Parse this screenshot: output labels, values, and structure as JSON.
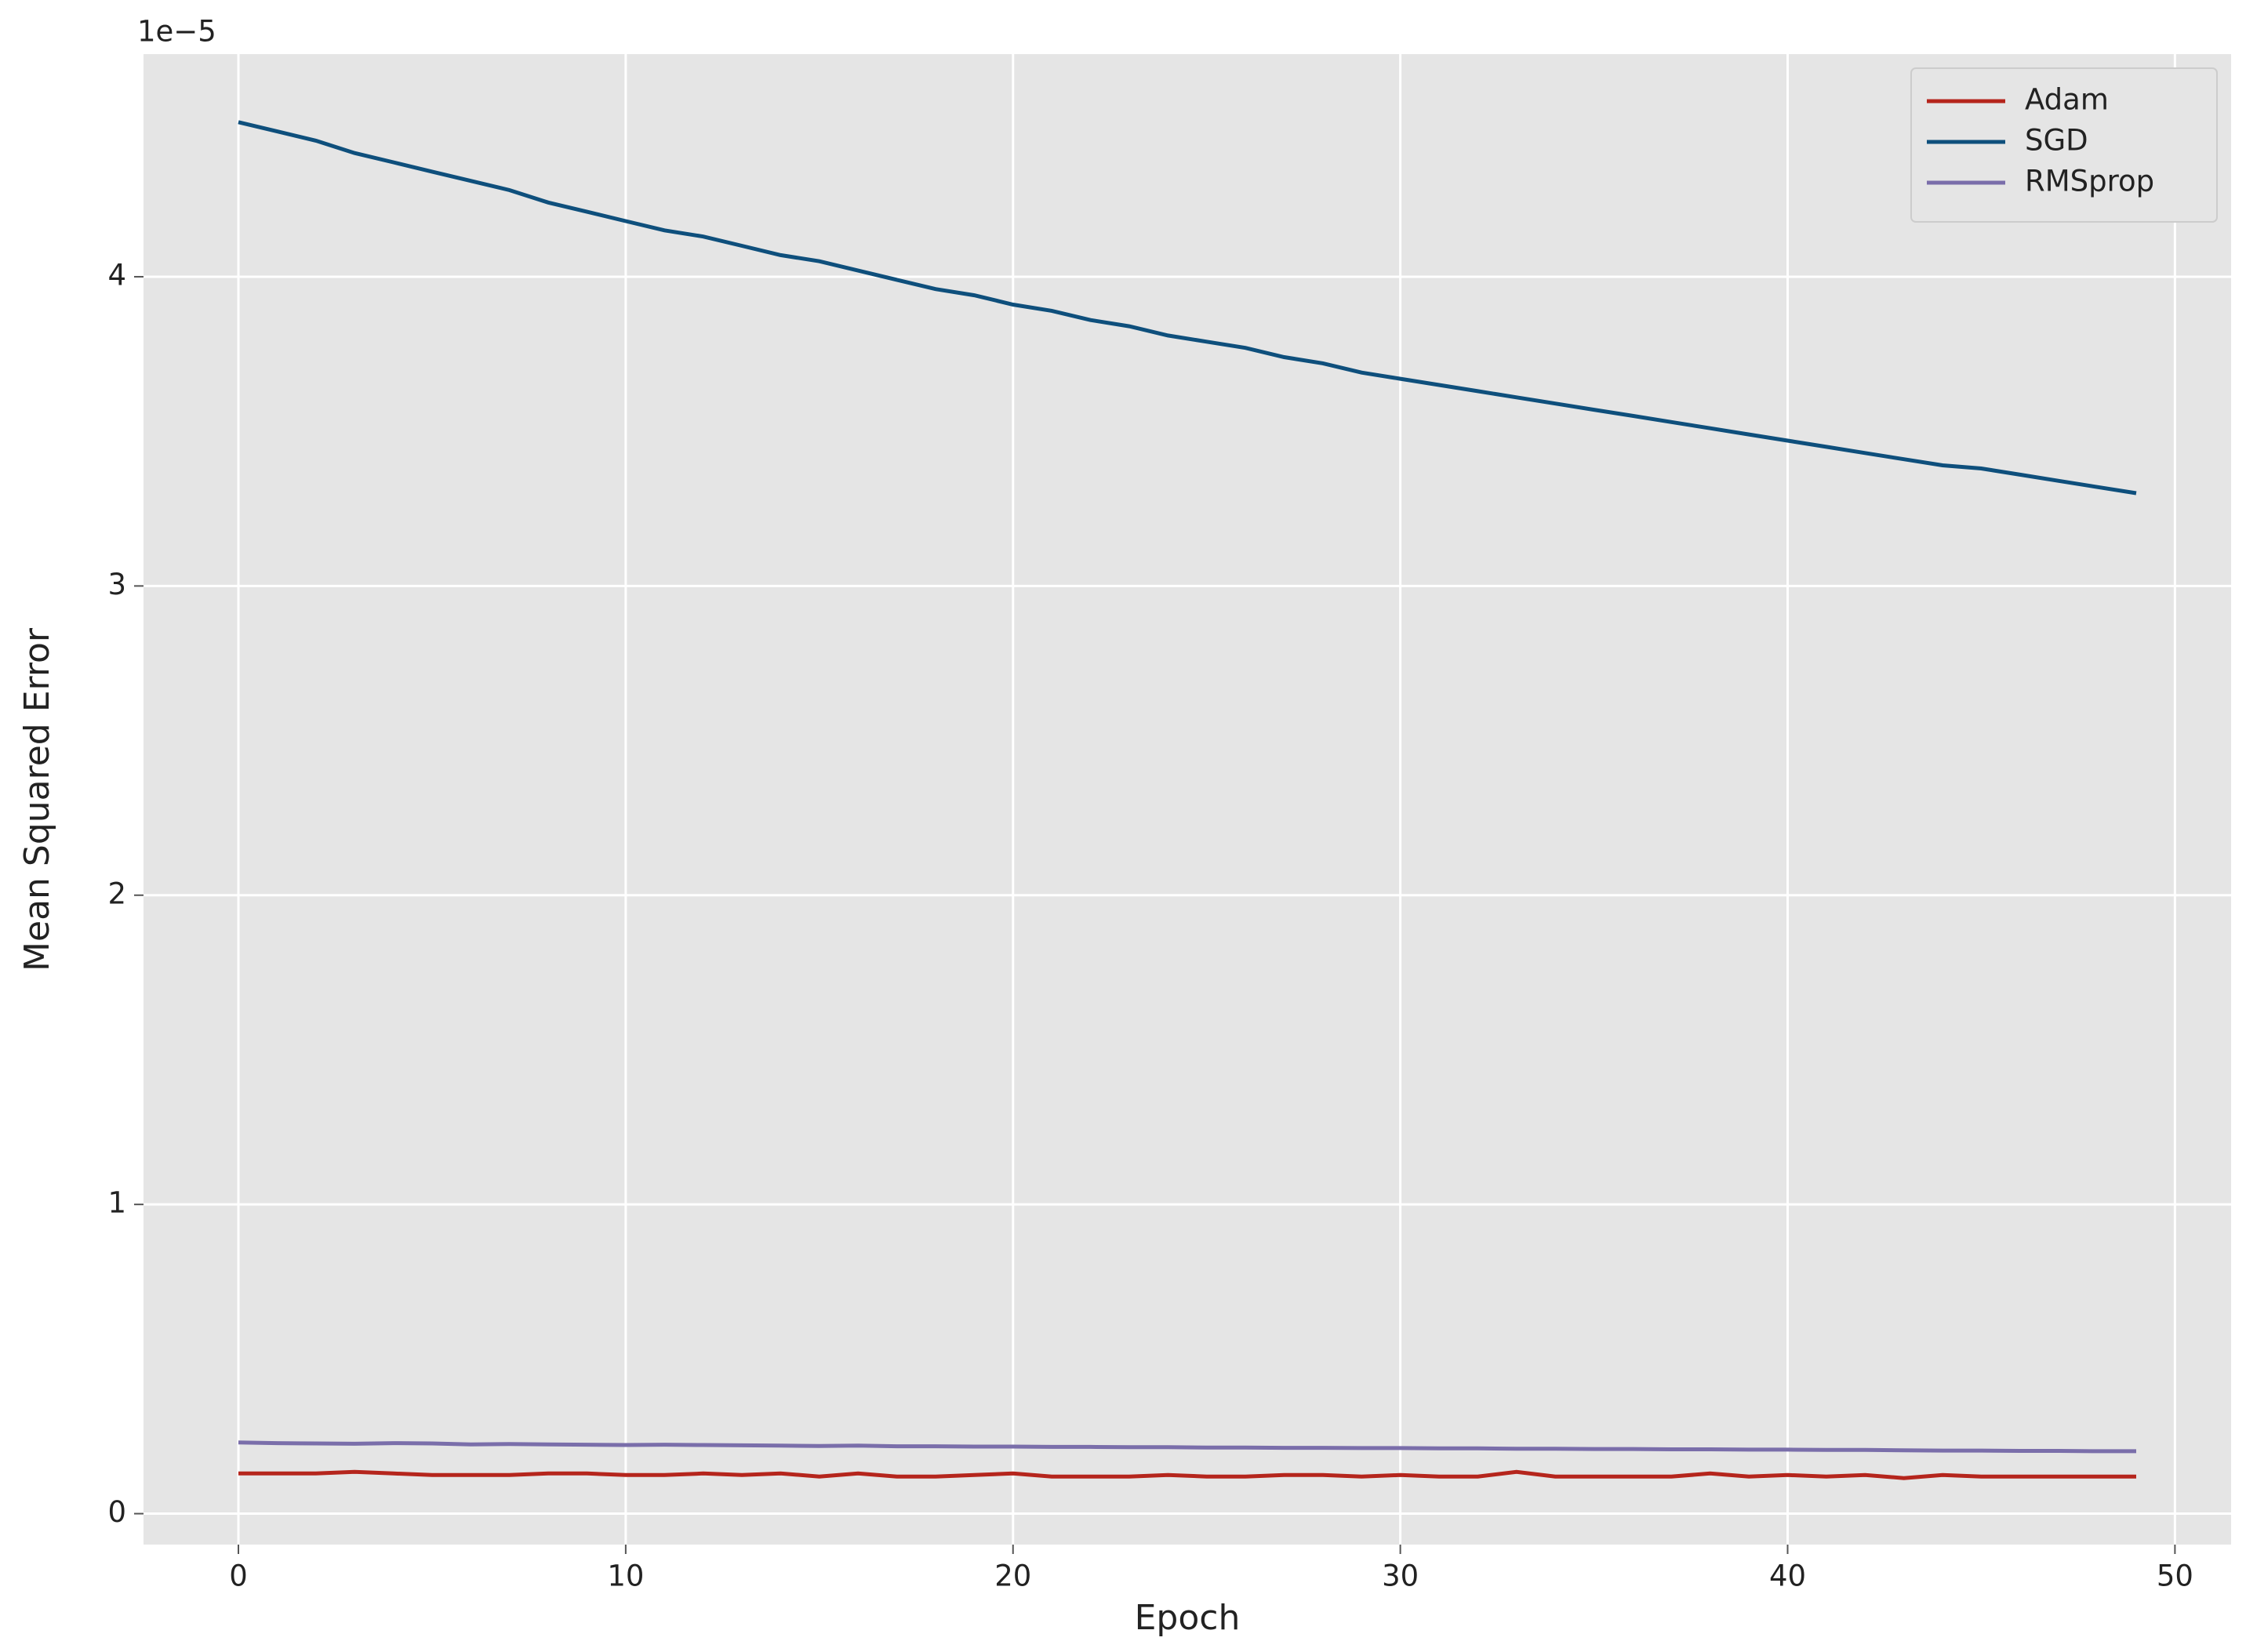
{
  "chart_data": {
    "type": "line",
    "xlabel": "Epoch",
    "ylabel": "Mean Squared Error",
    "offset_label": "1e−5",
    "x": [
      0,
      1,
      2,
      3,
      4,
      5,
      6,
      7,
      8,
      9,
      10,
      11,
      12,
      13,
      14,
      15,
      16,
      17,
      18,
      19,
      20,
      21,
      22,
      23,
      24,
      25,
      26,
      27,
      28,
      29,
      30,
      31,
      32,
      33,
      34,
      35,
      36,
      37,
      38,
      39,
      40,
      41,
      42,
      43,
      44,
      45,
      46,
      47,
      48,
      49
    ],
    "series": [
      {
        "name": "Adam",
        "color": "#b5251c",
        "values": [
          0.13,
          0.13,
          0.13,
          0.135,
          0.13,
          0.125,
          0.125,
          0.125,
          0.13,
          0.13,
          0.125,
          0.125,
          0.13,
          0.125,
          0.13,
          0.12,
          0.13,
          0.12,
          0.12,
          0.125,
          0.13,
          0.12,
          0.12,
          0.12,
          0.125,
          0.12,
          0.12,
          0.125,
          0.125,
          0.12,
          0.125,
          0.12,
          0.12,
          0.135,
          0.12,
          0.12,
          0.12,
          0.12,
          0.13,
          0.12,
          0.125,
          0.12,
          0.125,
          0.115,
          0.125,
          0.12,
          0.12,
          0.12,
          0.12,
          0.12
        ]
      },
      {
        "name": "SGD",
        "color": "#0e4f7c",
        "values": [
          4.5,
          4.47,
          4.44,
          4.4,
          4.37,
          4.34,
          4.31,
          4.28,
          4.24,
          4.21,
          4.18,
          4.15,
          4.13,
          4.1,
          4.07,
          4.05,
          4.02,
          3.99,
          3.96,
          3.94,
          3.91,
          3.89,
          3.86,
          3.84,
          3.81,
          3.79,
          3.77,
          3.74,
          3.72,
          3.69,
          3.67,
          3.65,
          3.63,
          3.61,
          3.59,
          3.57,
          3.55,
          3.53,
          3.51,
          3.49,
          3.47,
          3.45,
          3.43,
          3.41,
          3.39,
          3.38,
          3.36,
          3.34,
          3.32,
          3.3
        ]
      },
      {
        "name": "RMSprop",
        "color": "#7a6eaa",
        "values": [
          0.23,
          0.228,
          0.227,
          0.226,
          0.228,
          0.227,
          0.224,
          0.225,
          0.224,
          0.223,
          0.222,
          0.223,
          0.222,
          0.221,
          0.22,
          0.219,
          0.22,
          0.218,
          0.218,
          0.217,
          0.217,
          0.216,
          0.216,
          0.215,
          0.215,
          0.214,
          0.214,
          0.213,
          0.213,
          0.212,
          0.212,
          0.211,
          0.211,
          0.21,
          0.21,
          0.209,
          0.209,
          0.208,
          0.208,
          0.207,
          0.207,
          0.206,
          0.206,
          0.205,
          0.204,
          0.204,
          0.203,
          0.203,
          0.202,
          0.202
        ]
      }
    ],
    "xlim": [
      -2.45,
      51.45
    ],
    "xticks": [
      0,
      10,
      20,
      30,
      40,
      50
    ],
    "ylim": [
      -0.1,
      4.72
    ],
    "yticks": [
      0,
      1,
      2,
      3,
      4
    ],
    "grid": true,
    "legend": "upper right"
  }
}
